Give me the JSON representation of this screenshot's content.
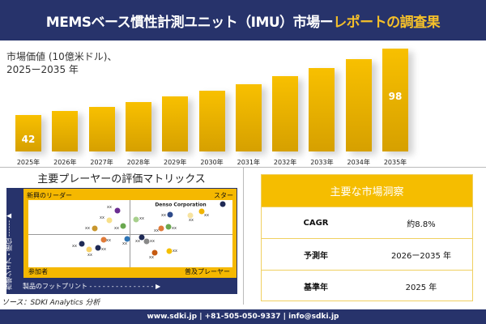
{
  "header": {
    "title_main": "MEMSベース慣性計測ユニット（IMU）市場ー",
    "title_highlight": "レポートの調査果"
  },
  "chart_data": {
    "type": "bar",
    "title_line1": "市場価値 (10億米ドル)、",
    "title_line2": "2025ー2035 年",
    "categories": [
      "2025年",
      "2026年",
      "2027年",
      "2028年",
      "2029年",
      "2030年",
      "2031年",
      "2032年",
      "2033年",
      "2034年",
      "2035年"
    ],
    "values": [
      42,
      45.4,
      48.9,
      53,
      57.7,
      62.5,
      68,
      74.8,
      81.6,
      89.1,
      98
    ],
    "data_labels": {
      "0": "42",
      "10": "98"
    },
    "bar_color": "#f5bd00",
    "grid": false
  },
  "matrix": {
    "title": "主要プレーヤーの評価マトリックス",
    "quadrants": {
      "top_left": "新興のリーダー",
      "top_right": "スター",
      "bottom_left": "参加者",
      "bottom_right": "普及プレーヤー"
    },
    "y_axis": "市場シェア・順位",
    "x_axis": "製品のフットプリント",
    "highlight_company": "Denso Corporation",
    "placeholder_label": "xx"
  },
  "source": "ソース：SDKI Analytics 分析",
  "insights": {
    "title": "主要な市場洞察",
    "rows": [
      {
        "k": "CAGR",
        "v": "約8.8%"
      },
      {
        "k": "予測年",
        "v": "2026ー2035 年"
      },
      {
        "k": "基準年",
        "v": "2025 年"
      }
    ]
  },
  "footer": "www.sdki.jp | +81-505-050-9337 | info@sdki.jp",
  "colors": {
    "navy": "#27336b",
    "accent": "#f5bd00"
  }
}
